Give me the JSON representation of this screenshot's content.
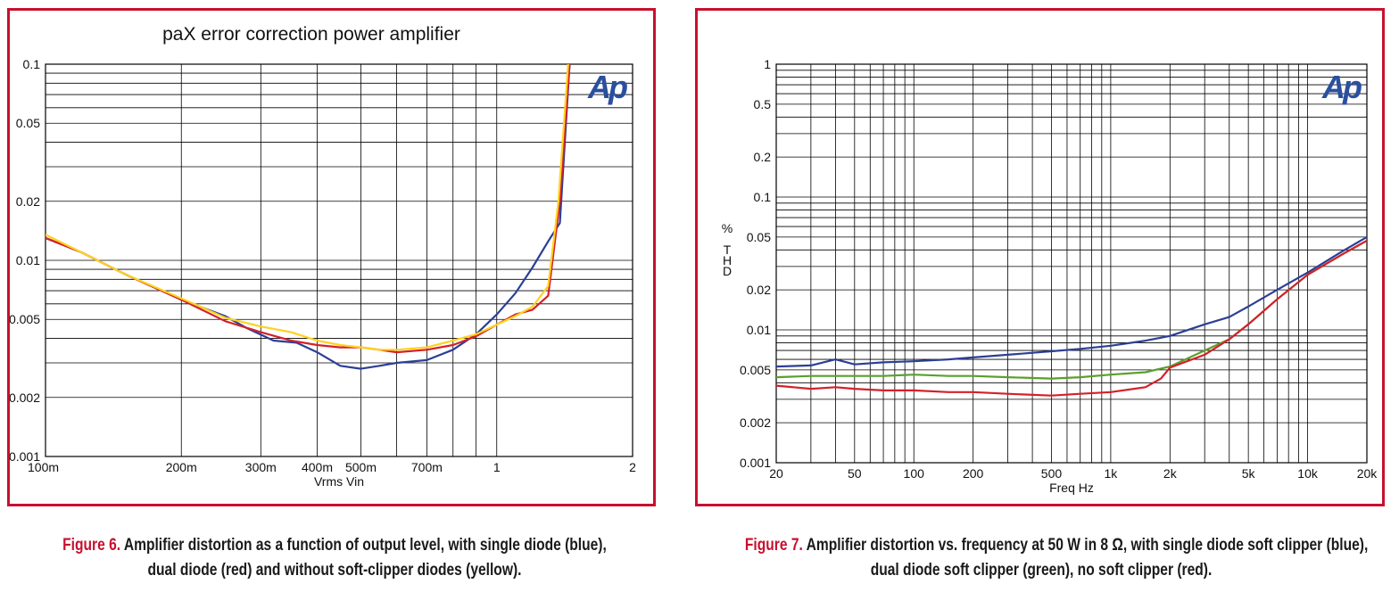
{
  "captions": {
    "fig6_label": "Figure 6.",
    "fig6_line1": " Amplifier distortion as a function of output level, with single diode (blue),",
    "fig6_line2": "dual diode (red) and without soft-clipper diodes (yellow).",
    "fig7_label": "Figure 7.",
    "fig7_line1": " Amplifier distortion vs. frequency at 50 W in 8 Ω, with single diode soft clipper (blue),",
    "fig7_line2": "dual diode soft clipper (green), no soft clipper (red)."
  },
  "toolbar": {
    "annotate_icon": "pencil-annotate-icon"
  },
  "chart_data": [
    {
      "type": "line",
      "title": "paX error correction power amplifier",
      "xlabel": "Vrms Vin",
      "ylabel": "",
      "logo": "Ap",
      "xscale": "log",
      "yscale": "log",
      "xlim": [
        0.1,
        2
      ],
      "ylim": [
        0.001,
        0.1
      ],
      "grid": true,
      "x_tick_labels": [
        {
          "v": 0.1,
          "t": "100m"
        },
        {
          "v": 0.2,
          "t": "200m"
        },
        {
          "v": 0.3,
          "t": "300m"
        },
        {
          "v": 0.4,
          "t": "400m"
        },
        {
          "v": 0.5,
          "t": "500m"
        },
        {
          "v": 0.7,
          "t": "700m"
        },
        {
          "v": 1,
          "t": "1"
        },
        {
          "v": 2,
          "t": "2"
        }
      ],
      "y_tick_labels": [
        {
          "v": 0.1,
          "t": "0.1"
        },
        {
          "v": 0.05,
          "t": "0.05"
        },
        {
          "v": 0.02,
          "t": "0.02"
        },
        {
          "v": 0.01,
          "t": "0.01"
        },
        {
          "v": 0.005,
          "t": "0.005"
        },
        {
          "v": 0.002,
          "t": "0.002"
        },
        {
          "v": 0.001,
          "t": "0.001"
        }
      ],
      "series": [
        {
          "color": "#2b3f96",
          "x": [
            0.1,
            0.12,
            0.15,
            0.2,
            0.25,
            0.28,
            0.32,
            0.36,
            0.4,
            0.45,
            0.5,
            0.55,
            0.6,
            0.7,
            0.8,
            0.9,
            1.0,
            1.1,
            1.2,
            1.3,
            1.38,
            1.45
          ],
          "y": [
            0.013,
            0.011,
            0.0085,
            0.0063,
            0.0052,
            0.0045,
            0.0039,
            0.0038,
            0.0034,
            0.0029,
            0.0028,
            0.0029,
            0.003,
            0.0031,
            0.0035,
            0.0042,
            0.0053,
            0.0068,
            0.0092,
            0.0125,
            0.0155,
            0.1
          ]
        },
        {
          "color": "#d4202a",
          "x": [
            0.1,
            0.12,
            0.15,
            0.2,
            0.25,
            0.3,
            0.35,
            0.4,
            0.45,
            0.5,
            0.55,
            0.6,
            0.7,
            0.8,
            0.9,
            1.0,
            1.1,
            1.2,
            1.3,
            1.38,
            1.45
          ],
          "y": [
            0.013,
            0.011,
            0.0085,
            0.0063,
            0.0049,
            0.0043,
            0.0039,
            0.0037,
            0.0036,
            0.0036,
            0.0035,
            0.0034,
            0.0035,
            0.0037,
            0.0041,
            0.0047,
            0.0053,
            0.0056,
            0.0066,
            0.02,
            0.1
          ]
        },
        {
          "color": "#ffd21e",
          "x": [
            0.1,
            0.12,
            0.15,
            0.2,
            0.25,
            0.3,
            0.35,
            0.4,
            0.45,
            0.5,
            0.55,
            0.6,
            0.7,
            0.8,
            0.9,
            1.0,
            1.1,
            1.2,
            1.3,
            1.37,
            1.44
          ],
          "y": [
            0.0135,
            0.011,
            0.0085,
            0.0064,
            0.0051,
            0.0046,
            0.0043,
            0.0039,
            0.0037,
            0.0036,
            0.0035,
            0.0035,
            0.0036,
            0.0039,
            0.0042,
            0.0047,
            0.0052,
            0.0058,
            0.0074,
            0.02,
            0.1
          ]
        }
      ]
    },
    {
      "type": "line",
      "title": "",
      "xlabel": "Freq Hz",
      "ylabel": "%\n\nT\nH\nD",
      "logo": "Ap",
      "xscale": "log",
      "yscale": "log",
      "xlim": [
        20,
        20000
      ],
      "ylim": [
        0.001,
        1
      ],
      "grid": true,
      "x_tick_labels": [
        {
          "v": 20,
          "t": "20"
        },
        {
          "v": 50,
          "t": "50"
        },
        {
          "v": 100,
          "t": "100"
        },
        {
          "v": 200,
          "t": "200"
        },
        {
          "v": 500,
          "t": "500"
        },
        {
          "v": 1000,
          "t": "1k"
        },
        {
          "v": 2000,
          "t": "2k"
        },
        {
          "v": 5000,
          "t": "5k"
        },
        {
          "v": 10000,
          "t": "10k"
        },
        {
          "v": 20000,
          "t": "20k"
        }
      ],
      "y_tick_labels": [
        {
          "v": 1,
          "t": "1"
        },
        {
          "v": 0.5,
          "t": "0.5"
        },
        {
          "v": 0.2,
          "t": "0.2"
        },
        {
          "v": 0.1,
          "t": "0.1"
        },
        {
          "v": 0.05,
          "t": "0.05"
        },
        {
          "v": 0.02,
          "t": "0.02"
        },
        {
          "v": 0.01,
          "t": "0.01"
        },
        {
          "v": 0.005,
          "t": "0.005"
        },
        {
          "v": 0.002,
          "t": "0.002"
        },
        {
          "v": 0.001,
          "t": "0.001"
        }
      ],
      "series": [
        {
          "color": "#2b3f96",
          "x": [
            20,
            30,
            40,
            50,
            70,
            100,
            150,
            200,
            300,
            500,
            700,
            1000,
            1500,
            2000,
            3000,
            4000,
            5000,
            7000,
            10000,
            15000,
            20000
          ],
          "y": [
            0.0053,
            0.0054,
            0.006,
            0.0055,
            0.0057,
            0.0058,
            0.006,
            0.0062,
            0.0065,
            0.0069,
            0.0072,
            0.0076,
            0.0083,
            0.009,
            0.011,
            0.0125,
            0.015,
            0.02,
            0.027,
            0.039,
            0.05
          ]
        },
        {
          "color": "#5aa02c",
          "x": [
            20,
            30,
            40,
            50,
            70,
            100,
            150,
            200,
            300,
            500,
            700,
            1000,
            1500,
            2000,
            3000,
            4000,
            5000,
            7000,
            10000,
            15000,
            20000
          ],
          "y": [
            0.0044,
            0.0045,
            0.0045,
            0.0045,
            0.0045,
            0.0046,
            0.0045,
            0.0045,
            0.0044,
            0.0043,
            0.0044,
            0.0046,
            0.0048,
            0.0053,
            0.007,
            0.0085,
            0.011,
            0.017,
            0.026,
            0.037,
            0.047
          ]
        },
        {
          "color": "#d4202a",
          "x": [
            20,
            30,
            40,
            50,
            70,
            100,
            150,
            200,
            300,
            500,
            700,
            1000,
            1500,
            1800,
            2000,
            3000,
            4000,
            5000,
            7000,
            10000,
            15000,
            20000
          ],
          "y": [
            0.0038,
            0.0036,
            0.0037,
            0.0036,
            0.0035,
            0.0035,
            0.0034,
            0.0034,
            0.0033,
            0.0032,
            0.0033,
            0.0034,
            0.0037,
            0.0043,
            0.0052,
            0.0065,
            0.0085,
            0.011,
            0.017,
            0.026,
            0.037,
            0.047
          ]
        }
      ]
    }
  ]
}
